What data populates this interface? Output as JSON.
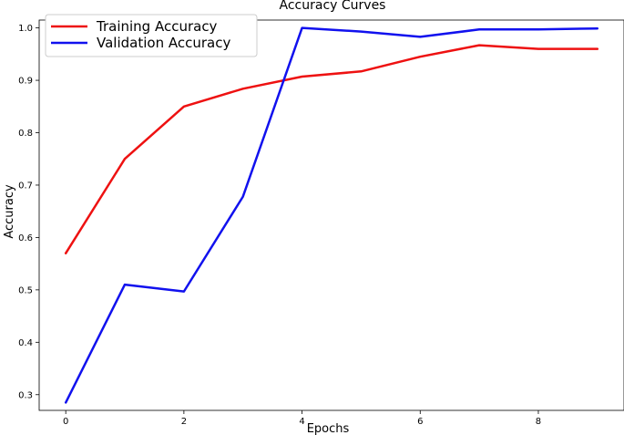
{
  "chart_data": {
    "type": "line",
    "title": "Accuracy Curves",
    "xlabel": "Epochs",
    "ylabel": "Accuracy",
    "x": [
      0,
      1,
      2,
      3,
      4,
      5,
      6,
      7,
      8,
      9
    ],
    "xlim": [
      -0.45,
      9.45
    ],
    "ylim": [
      0.27,
      1.015
    ],
    "xticks": [
      0,
      2,
      4,
      6,
      8
    ],
    "yticks": [
      0.3,
      0.4,
      0.5,
      0.6,
      0.7,
      0.8,
      0.9,
      1.0
    ],
    "ytick_labels": [
      "0.3",
      "0.4",
      "0.5",
      "0.6",
      "0.7",
      "0.8",
      "0.9",
      "1.0"
    ],
    "grid": false,
    "legend_position": "top-left",
    "series": [
      {
        "name": "Training Accuracy",
        "color": "#ee1111",
        "values": [
          0.57,
          0.75,
          0.85,
          0.884,
          0.907,
          0.917,
          0.945,
          0.967,
          0.96,
          0.96
        ]
      },
      {
        "name": "Validation Accuracy",
        "color": "#1111ee",
        "values": [
          0.285,
          0.51,
          0.497,
          0.678,
          1.0,
          0.993,
          0.983,
          0.997,
          0.997,
          0.999
        ]
      }
    ]
  }
}
